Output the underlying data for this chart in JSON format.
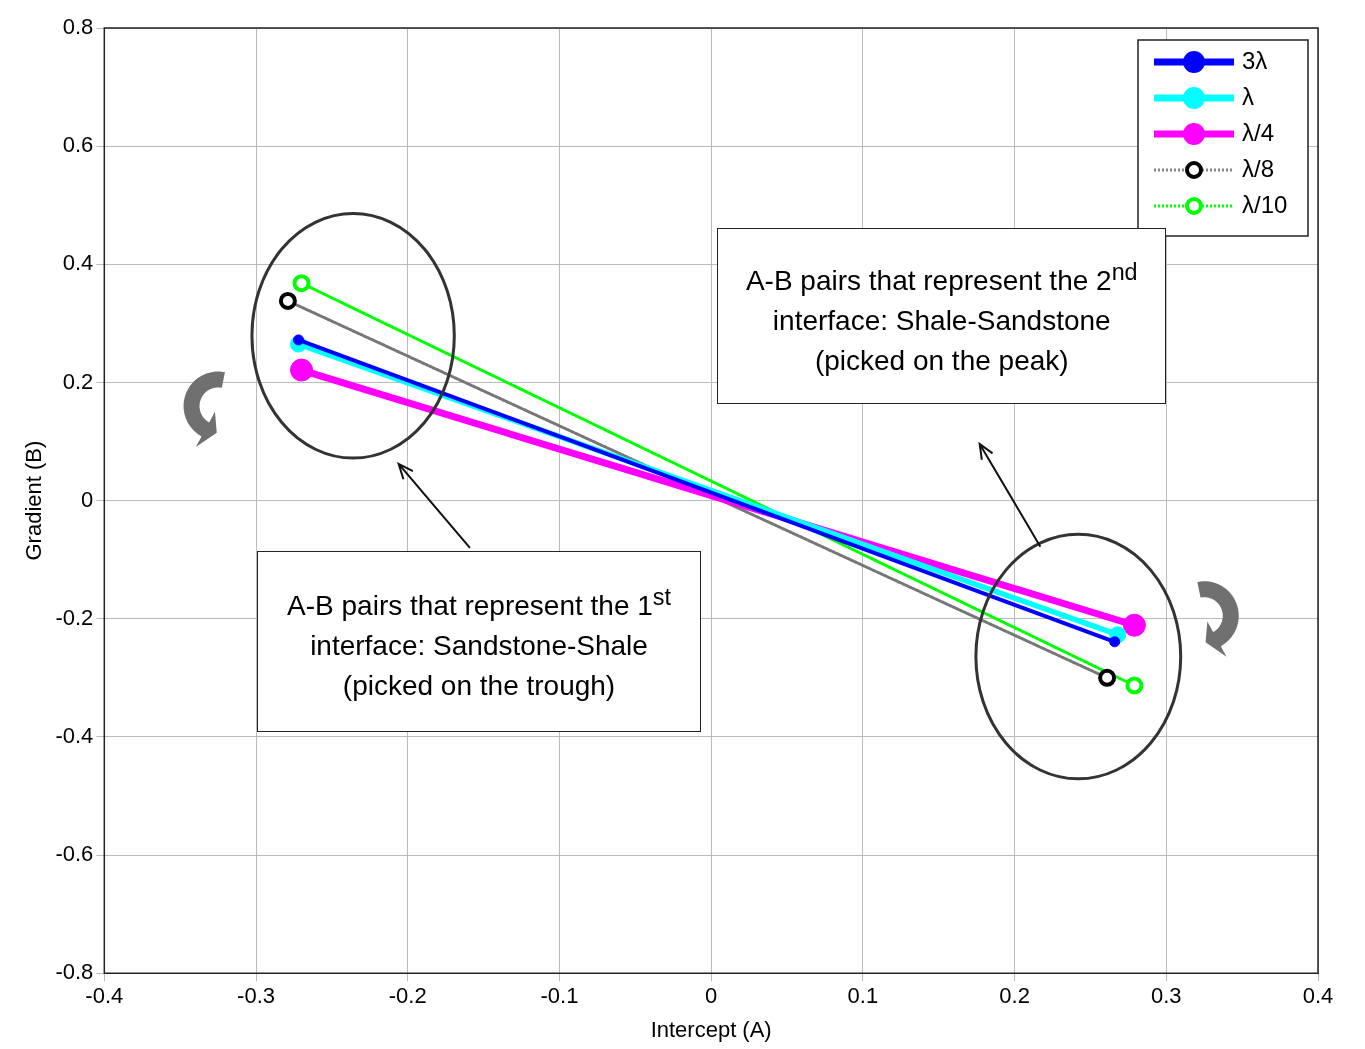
{
  "chart_data": {
    "type": "line",
    "xlabel": "Intercept (A)",
    "ylabel": "Gradient (B)",
    "xlim": [
      -0.4,
      0.4
    ],
    "xticks": [
      -0.4,
      -0.3,
      -0.2,
      -0.1,
      0,
      0.1,
      0.2,
      0.3,
      0.4
    ],
    "ylim": [
      -0.8,
      0.8
    ],
    "yticks": [
      -0.8,
      -0.6,
      -0.4,
      -0.2,
      0,
      0.2,
      0.4,
      0.6,
      0.8
    ],
    "grid": true,
    "legend": "top right",
    "marker": "circle",
    "series": [
      {
        "name": "3λ",
        "color": "#0000ff",
        "line_style": "solid",
        "x": [
          -0.272,
          0.266
        ],
        "values": [
          0.272,
          -0.239
        ]
      },
      {
        "name": "λ",
        "color": "#00ffff",
        "line_style": "solid",
        "x": [
          -0.272,
          0.268
        ],
        "values": [
          0.265,
          -0.227
        ]
      },
      {
        "name": "λ/4",
        "color": "#ff00ff",
        "line_style": "solid",
        "x": [
          -0.27,
          0.279
        ],
        "values": [
          0.221,
          -0.211
        ]
      },
      {
        "name": "λ/8",
        "color": "#000000",
        "line_style": "dotted",
        "x": [
          -0.279,
          0.261
        ],
        "values": [
          0.338,
          -0.3
        ]
      },
      {
        "name": "λ/10",
        "color": "#00ff00",
        "line_style": "dotted",
        "x": [
          -0.27,
          0.279
        ],
        "values": [
          0.368,
          -0.313
        ]
      }
    ],
    "annotations": [
      "A-B pairs that represent the 1$^{st}$ interface: Sandstone-Shale (picked on the trough)",
      "A-B pairs that represent the 2$^{nd}$ interface: Shale-Sandstone (picked on the peak)"
    ]
  }
}
